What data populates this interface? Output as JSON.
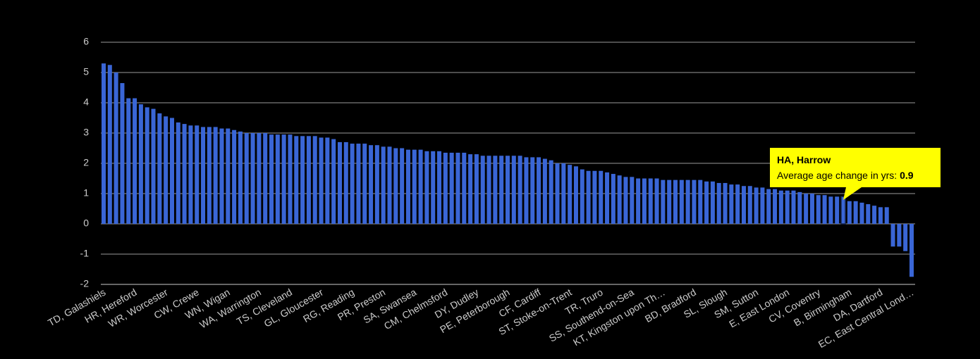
{
  "chart_data": {
    "type": "bar",
    "color": "#3a66d6",
    "grid": true,
    "ylim": [
      -2,
      6
    ],
    "yticks": [
      -2,
      -1,
      0,
      1,
      2,
      3,
      4,
      5,
      6
    ],
    "categories": [
      "TD, Galashiels",
      null,
      null,
      null,
      null,
      "HR, Hereford",
      null,
      null,
      null,
      null,
      "WR, Worcester",
      null,
      null,
      null,
      null,
      "CW, Crewe",
      null,
      null,
      null,
      null,
      "WN, Wigan",
      null,
      null,
      null,
      null,
      "WA, Warrington",
      null,
      null,
      null,
      null,
      "TS, Cleveland",
      null,
      null,
      null,
      null,
      "GL, Gloucester",
      null,
      null,
      null,
      null,
      "RG, Reading",
      null,
      null,
      null,
      null,
      "PR, Preston",
      null,
      null,
      null,
      null,
      "SA, Swansea",
      null,
      null,
      null,
      null,
      "CM, Chelmsford",
      null,
      null,
      null,
      null,
      "DY, Dudley",
      null,
      null,
      null,
      null,
      "PE, Peterborough",
      null,
      null,
      null,
      null,
      "CF, Cardiff",
      null,
      null,
      null,
      null,
      "ST, Stoke-on-Trent",
      null,
      null,
      null,
      null,
      "TR, Truro",
      null,
      null,
      null,
      null,
      "SS, Southend-on-Sea",
      null,
      null,
      null,
      null,
      "KT, Kingston upon Th…",
      null,
      null,
      null,
      null,
      "BD, Bradford",
      null,
      null,
      null,
      null,
      "SL, Slough",
      null,
      null,
      null,
      null,
      "SM, Sutton",
      null,
      null,
      null,
      null,
      "E, East London",
      null,
      null,
      null,
      null,
      "CV, Coventry",
      null,
      null,
      null,
      null,
      "B, Birmingham",
      null,
      null,
      null,
      null,
      "DA, Dartford",
      null,
      null,
      null,
      null,
      "EC, East Central Lond…"
    ],
    "values": [
      5.3,
      5.25,
      5.0,
      4.65,
      4.15,
      4.15,
      3.95,
      3.85,
      3.8,
      3.65,
      3.55,
      3.5,
      3.35,
      3.3,
      3.25,
      3.25,
      3.2,
      3.2,
      3.2,
      3.15,
      3.15,
      3.1,
      3.05,
      3.0,
      3.0,
      3.0,
      3.0,
      2.95,
      2.95,
      2.95,
      2.95,
      2.9,
      2.9,
      2.9,
      2.9,
      2.85,
      2.85,
      2.8,
      2.7,
      2.7,
      2.65,
      2.65,
      2.65,
      2.6,
      2.6,
      2.55,
      2.55,
      2.5,
      2.5,
      2.45,
      2.45,
      2.45,
      2.4,
      2.4,
      2.4,
      2.35,
      2.35,
      2.35,
      2.35,
      2.3,
      2.3,
      2.25,
      2.25,
      2.25,
      2.25,
      2.25,
      2.25,
      2.25,
      2.2,
      2.2,
      2.2,
      2.15,
      2.1,
      2.0,
      2.0,
      1.95,
      1.9,
      1.8,
      1.75,
      1.75,
      1.75,
      1.7,
      1.65,
      1.6,
      1.55,
      1.55,
      1.5,
      1.5,
      1.5,
      1.5,
      1.45,
      1.45,
      1.45,
      1.45,
      1.45,
      1.45,
      1.45,
      1.4,
      1.4,
      1.35,
      1.35,
      1.3,
      1.3,
      1.25,
      1.25,
      1.2,
      1.2,
      1.15,
      1.15,
      1.1,
      1.1,
      1.1,
      1.05,
      1.0,
      1.0,
      0.95,
      0.95,
      0.9,
      0.9,
      0.9,
      0.75,
      0.75,
      0.7,
      0.65,
      0.6,
      0.55,
      0.55,
      -0.75,
      -0.75,
      -0.9,
      -1.75
    ],
    "tooltip": {
      "title": "HA, Harrow",
      "label": "Average age change in yrs:",
      "value": 0.9
    }
  }
}
